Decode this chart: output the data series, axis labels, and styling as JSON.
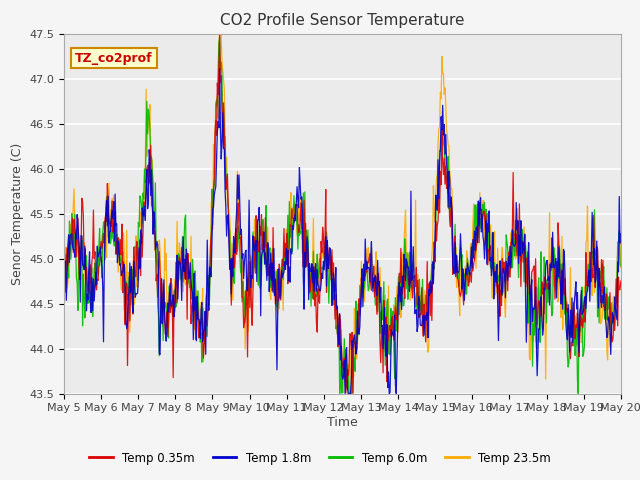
{
  "title": "CO2 Profile Sensor Temperature",
  "ylabel": "Senor Temperature (C)",
  "xlabel": "Time",
  "annotation": "TZ_co2prof",
  "annotation_bg": "#ffffcc",
  "annotation_border": "#cc8800",
  "annotation_text_color": "#cc0000",
  "ylim": [
    43.5,
    47.5
  ],
  "series": [
    "Temp 0.35m",
    "Temp 1.8m",
    "Temp 6.0m",
    "Temp 23.5m"
  ],
  "colors": [
    "#dd0000",
    "#0000cc",
    "#00bb00",
    "#ffaa00"
  ],
  "xtick_labels": [
    "May 5",
    "May 6",
    "May 7",
    "May 8",
    "May 9",
    "May 10",
    "May 11",
    "May 12",
    "May 13",
    "May 14",
    "May 15",
    "May 16",
    "May 17",
    "May 18",
    "May 19",
    "May 20"
  ],
  "bg_color": "#ebebeb",
  "grid_color": "#ffffff",
  "title_fontsize": 11,
  "label_fontsize": 9,
  "tick_fontsize": 8,
  "fig_bg": "#f5f5f5"
}
